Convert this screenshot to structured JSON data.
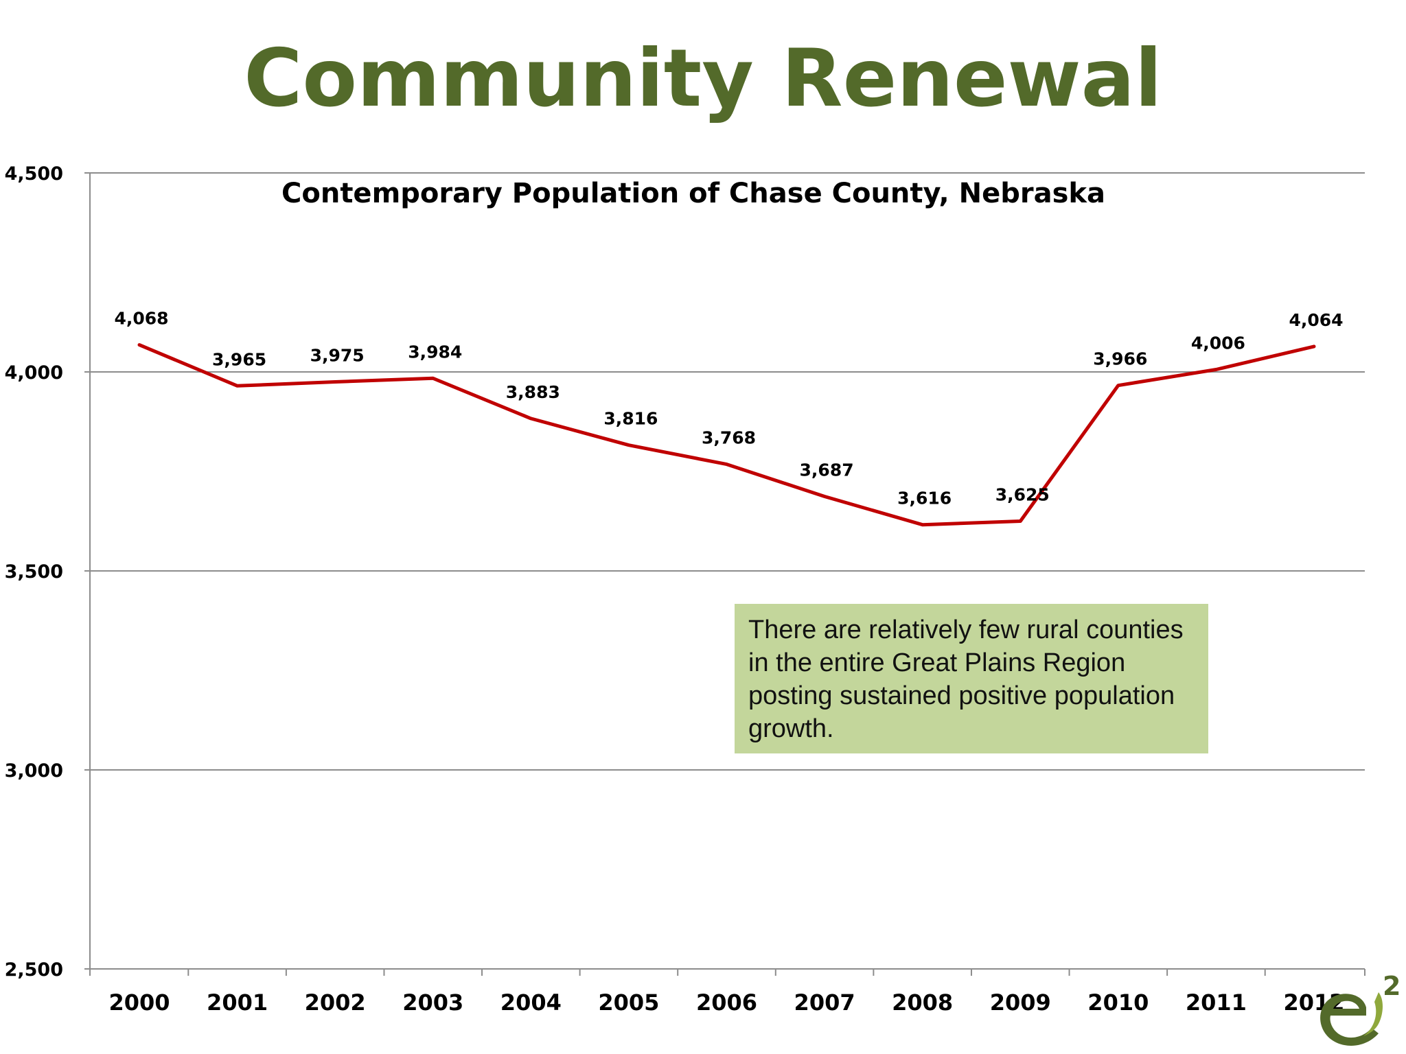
{
  "slide": {
    "title": "Community Renewal"
  },
  "callout": {
    "text": "There are relatively few rural counties in the entire Great Plains Region posting sustained positive population growth."
  },
  "logo": {
    "superscript": "2",
    "colors": {
      "green": "#536a2a",
      "light_green": "#8fa83c"
    }
  },
  "colors": {
    "title": "#536a2a",
    "line": "#c00000",
    "callout_bg": "#c3d69b",
    "gridline": "#8c8c8c"
  },
  "chart_data": {
    "type": "line",
    "title": "Contemporary Population of Chase County, Nebraska",
    "xlabel": "",
    "ylabel": "",
    "categories": [
      "2000",
      "2001",
      "2002",
      "2003",
      "2004",
      "2005",
      "2006",
      "2007",
      "2008",
      "2009",
      "2010",
      "2011",
      "2012"
    ],
    "series": [
      {
        "values": [
          4068,
          3965,
          3975,
          3984,
          3883,
          3816,
          3768,
          3687,
          3616,
          3625,
          3966,
          4006,
          4064
        ],
        "color": "#c00000"
      }
    ],
    "data_labels": [
      "4,068",
      "3,965",
      "3,975",
      "3,984",
      "3,883",
      "3,816",
      "3,768",
      "3,687",
      "3,616",
      "3,625",
      "3,966",
      "4,006",
      "4,064"
    ],
    "ylim": [
      2500,
      4500
    ],
    "yticks": [
      4500,
      4000,
      3500,
      3000,
      2500
    ],
    "ytick_labels": [
      "4,500",
      "4,000",
      "3,500",
      "3,000",
      "2,500"
    ],
    "grid": true,
    "legend": "none"
  }
}
